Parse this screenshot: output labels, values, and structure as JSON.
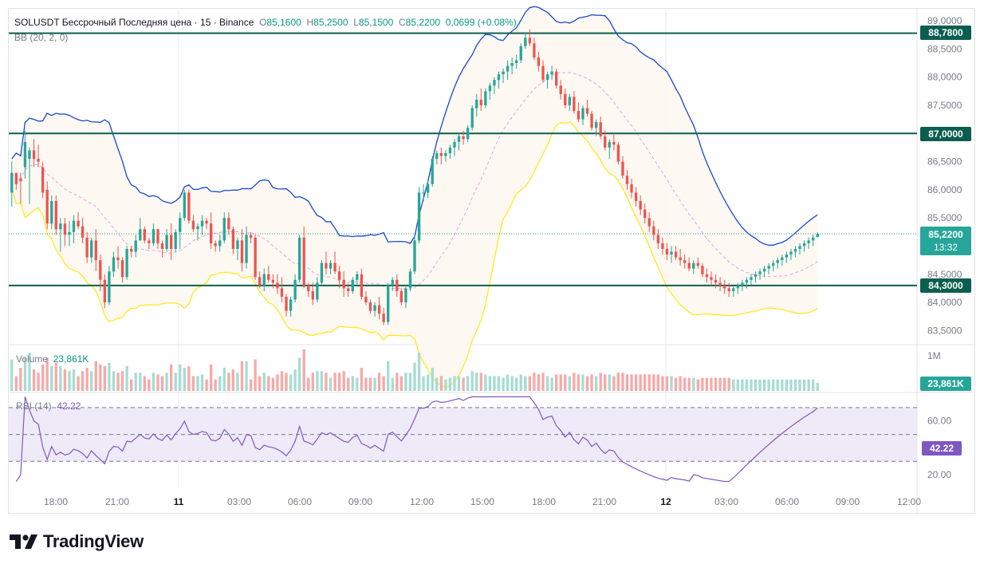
{
  "legend": {
    "symbol": "SOLUSDT Бессрочный Последняя цена · 15 · Binance",
    "open_label": "O",
    "open": "85,1600",
    "high_label": "H",
    "high": "85,2500",
    "low_label": "L",
    "low": "85,1500",
    "close_label": "C",
    "close": "85,2200",
    "change": "0,0699 (+0.08%)",
    "bb": "BB (20, 2, 0)",
    "volume_label": "Volume",
    "volume_value": "23,861K",
    "rsi_label": "RSI (14)",
    "rsi_value": "42.22"
  },
  "badges": {
    "level_high": "88,7800",
    "level_mid": "87,0000",
    "level_low": "84,3000",
    "last_price": "85,2200",
    "countdown": "13:32",
    "volume": "23,861K",
    "rsi": "42.22"
  },
  "volume_axis_label": "1M",
  "brand": "TradingView",
  "colors": {
    "up": "#26a69a",
    "down": "#ef5350",
    "bb_upper": "#1848cc",
    "bb_lower": "#ffe91f",
    "bb_mid": "#e1a3e8",
    "level": "#0b5e4f",
    "rsi": "#7e57c2"
  },
  "chart_data": [
    {
      "type": "candlestick",
      "title": "SOLUSDT Бессрочный Последняя цена · 15 · Binance",
      "y_ticks": [
        "89,0000",
        "88,5000",
        "88,0000",
        "87,5000",
        "87,0000",
        "86,5000",
        "86,0000",
        "85,5000",
        "85,0000",
        "84,5000",
        "84,0000",
        "83,5000"
      ],
      "y_tick_values": [
        89.0,
        88.5,
        88.0,
        87.5,
        87.0,
        86.5,
        86.0,
        85.5,
        85.0,
        84.5,
        84.0,
        83.5
      ],
      "ylim": [
        83.25,
        89.2
      ],
      "x_ticks": [
        "18:00",
        "21:00",
        "11",
        "03:00",
        "06:00",
        "09:00",
        "12:00",
        "15:00",
        "18:00",
        "21:00",
        "12",
        "03:00",
        "06:00",
        "09:00",
        "12:00"
      ],
      "horizontal_levels": [
        88.78,
        87.0,
        84.3
      ],
      "last_price": 85.22,
      "candles": [
        [
          85.95,
          86.5,
          85.7,
          86.3
        ],
        [
          86.3,
          86.3,
          86.0,
          86.1
        ],
        [
          86.2,
          86.3,
          85.75,
          86.15
        ],
        [
          86.4,
          87.05,
          86.2,
          86.85
        ],
        [
          86.55,
          86.75,
          85.75,
          86.7
        ],
        [
          86.7,
          86.9,
          86.4,
          86.55
        ],
        [
          86.55,
          86.8,
          86.4,
          86.5
        ],
        [
          86.4,
          86.5,
          85.85,
          85.95
        ],
        [
          86.0,
          86.15,
          85.3,
          85.4
        ],
        [
          85.4,
          85.9,
          85.3,
          85.8
        ],
        [
          85.8,
          85.9,
          85.2,
          85.3
        ],
        [
          85.3,
          85.5,
          84.9,
          85.4
        ],
        [
          85.4,
          85.5,
          85.0,
          85.2
        ],
        [
          85.2,
          85.45,
          85.0,
          85.25
        ],
        [
          85.25,
          85.55,
          85.05,
          85.45
        ],
        [
          85.45,
          85.6,
          85.3,
          85.35
        ],
        [
          85.35,
          85.5,
          85.05,
          85.15
        ],
        [
          85.15,
          85.25,
          84.7,
          84.8
        ],
        [
          84.8,
          85.15,
          84.7,
          85.1
        ],
        [
          85.1,
          85.3,
          84.55,
          84.75
        ],
        [
          84.75,
          84.85,
          84.2,
          84.4
        ],
        [
          84.4,
          84.5,
          83.9,
          84.0
        ],
        [
          84.0,
          84.65,
          83.95,
          84.55
        ],
        [
          84.55,
          84.9,
          84.45,
          84.8
        ],
        [
          84.8,
          85.0,
          84.6,
          84.75
        ],
        [
          84.75,
          84.8,
          84.35,
          84.45
        ],
        [
          84.45,
          85.0,
          84.4,
          84.95
        ],
        [
          84.95,
          85.0,
          84.8,
          84.9
        ],
        [
          84.9,
          85.2,
          84.8,
          85.1
        ],
        [
          85.1,
          85.5,
          85.1,
          85.3
        ],
        [
          85.3,
          85.35,
          85.05,
          85.1
        ],
        [
          85.1,
          85.15,
          84.95,
          85.05
        ],
        [
          85.05,
          85.4,
          85.0,
          85.3
        ],
        [
          85.3,
          85.3,
          84.95,
          85.05
        ],
        [
          85.05,
          85.1,
          84.8,
          84.95
        ],
        [
          84.95,
          85.3,
          84.9,
          85.2
        ],
        [
          85.2,
          85.4,
          84.75,
          84.95
        ],
        [
          84.95,
          85.3,
          84.9,
          85.25
        ],
        [
          85.25,
          85.6,
          84.95,
          85.5
        ],
        [
          85.5,
          86.0,
          85.45,
          85.95
        ],
        [
          85.95,
          86.0,
          85.4,
          85.45
        ],
        [
          85.45,
          85.55,
          85.25,
          85.3
        ],
        [
          85.3,
          85.4,
          85.1,
          85.35
        ],
        [
          85.35,
          85.55,
          85.2,
          85.45
        ],
        [
          85.45,
          85.5,
          85.3,
          85.4
        ],
        [
          85.4,
          85.6,
          84.95,
          85.05
        ],
        [
          85.05,
          85.1,
          84.9,
          85.0
        ],
        [
          85.0,
          85.2,
          84.9,
          85.1
        ],
        [
          85.1,
          85.6,
          85.05,
          85.5
        ],
        [
          85.5,
          85.6,
          85.2,
          85.3
        ],
        [
          85.3,
          85.35,
          84.85,
          84.95
        ],
        [
          84.95,
          85.15,
          84.75,
          85.1
        ],
        [
          85.1,
          85.3,
          84.55,
          84.7
        ],
        [
          84.7,
          85.35,
          84.6,
          85.2
        ],
        [
          85.2,
          85.25,
          85.05,
          85.15
        ],
        [
          85.15,
          85.2,
          84.4,
          84.45
        ],
        [
          84.45,
          84.55,
          84.25,
          84.3
        ],
        [
          84.3,
          84.6,
          84.2,
          84.5
        ],
        [
          84.5,
          84.65,
          84.35,
          84.4
        ],
        [
          84.4,
          84.5,
          84.25,
          84.35
        ],
        [
          84.35,
          84.5,
          84.15,
          84.25
        ],
        [
          84.25,
          84.45,
          84.0,
          84.1
        ],
        [
          84.1,
          84.15,
          83.75,
          83.85
        ],
        [
          83.85,
          84.1,
          83.75,
          84.05
        ],
        [
          84.05,
          84.5,
          84.0,
          84.4
        ],
        [
          84.4,
          85.2,
          84.35,
          85.15
        ],
        [
          85.15,
          85.35,
          84.25,
          84.3
        ],
        [
          84.3,
          84.35,
          84.1,
          84.2
        ],
        [
          84.2,
          84.35,
          83.95,
          84.05
        ],
        [
          84.05,
          84.45,
          84.0,
          84.35
        ],
        [
          84.35,
          84.75,
          84.3,
          84.7
        ],
        [
          84.7,
          84.9,
          84.5,
          84.6
        ],
        [
          84.6,
          84.75,
          84.5,
          84.7
        ],
        [
          84.7,
          84.9,
          84.5,
          84.55
        ],
        [
          84.55,
          84.65,
          84.25,
          84.4
        ],
        [
          84.4,
          84.55,
          84.1,
          84.25
        ],
        [
          84.25,
          84.35,
          84.1,
          84.2
        ],
        [
          84.2,
          84.45,
          84.15,
          84.4
        ],
        [
          84.4,
          84.55,
          84.3,
          84.5
        ],
        [
          84.5,
          84.6,
          84.05,
          84.1
        ],
        [
          84.1,
          84.2,
          83.95,
          84.0
        ],
        [
          84.0,
          84.05,
          83.8,
          83.85
        ],
        [
          83.85,
          84.0,
          83.75,
          83.95
        ],
        [
          83.95,
          84.1,
          83.7,
          83.8
        ],
        [
          83.8,
          83.9,
          83.6,
          83.65
        ],
        [
          83.65,
          84.35,
          83.6,
          84.3
        ],
        [
          84.3,
          84.45,
          84.2,
          84.4
        ],
        [
          84.4,
          84.5,
          84.1,
          84.2
        ],
        [
          84.2,
          84.25,
          83.95,
          84.0
        ],
        [
          84.0,
          84.3,
          83.9,
          84.25
        ],
        [
          84.25,
          84.6,
          84.2,
          84.55
        ],
        [
          84.55,
          85.2,
          84.5,
          85.1
        ],
        [
          85.1,
          86.05,
          85.05,
          85.95
        ],
        [
          85.95,
          86.1,
          85.8,
          85.95
        ],
        [
          85.95,
          86.2,
          85.85,
          86.1
        ],
        [
          86.1,
          86.6,
          86.05,
          86.55
        ],
        [
          86.55,
          86.7,
          86.45,
          86.65
        ],
        [
          86.65,
          86.75,
          86.45,
          86.6
        ],
        [
          86.6,
          86.7,
          86.5,
          86.65
        ],
        [
          86.65,
          86.8,
          86.55,
          86.75
        ],
        [
          86.75,
          86.9,
          86.6,
          86.85
        ],
        [
          86.85,
          87.0,
          86.7,
          86.95
        ],
        [
          86.95,
          87.05,
          86.8,
          86.9
        ],
        [
          86.9,
          87.15,
          86.85,
          87.1
        ],
        [
          87.1,
          87.5,
          87.05,
          87.45
        ],
        [
          87.45,
          87.7,
          87.3,
          87.6
        ],
        [
          87.6,
          87.8,
          87.4,
          87.5
        ],
        [
          87.5,
          87.8,
          87.45,
          87.75
        ],
        [
          87.75,
          87.9,
          87.6,
          87.85
        ],
        [
          87.85,
          88.0,
          87.7,
          87.95
        ],
        [
          87.95,
          88.1,
          87.8,
          88.05
        ],
        [
          88.05,
          88.15,
          87.9,
          88.1
        ],
        [
          88.1,
          88.3,
          87.95,
          88.2
        ],
        [
          88.2,
          88.35,
          88.05,
          88.25
        ],
        [
          88.25,
          88.4,
          88.15,
          88.3
        ],
        [
          88.3,
          88.6,
          88.25,
          88.55
        ],
        [
          88.55,
          88.8,
          88.5,
          88.7
        ],
        [
          88.7,
          88.85,
          88.55,
          88.6
        ],
        [
          88.6,
          88.7,
          88.3,
          88.35
        ],
        [
          88.35,
          88.45,
          88.1,
          88.2
        ],
        [
          88.2,
          88.3,
          87.9,
          87.95
        ],
        [
          87.95,
          88.1,
          87.8,
          88.05
        ],
        [
          88.05,
          88.2,
          87.95,
          88.1
        ],
        [
          88.1,
          88.15,
          87.8,
          87.85
        ],
        [
          87.85,
          87.95,
          87.6,
          87.7
        ],
        [
          87.7,
          87.8,
          87.45,
          87.5
        ],
        [
          87.5,
          87.7,
          87.4,
          87.65
        ],
        [
          87.65,
          87.75,
          87.35,
          87.4
        ],
        [
          87.4,
          87.55,
          87.2,
          87.25
        ],
        [
          87.25,
          87.5,
          87.15,
          87.45
        ],
        [
          87.45,
          87.6,
          87.3,
          87.35
        ],
        [
          87.35,
          87.4,
          87.05,
          87.1
        ],
        [
          87.1,
          87.25,
          86.95,
          87.2
        ],
        [
          87.2,
          87.3,
          86.9,
          86.95
        ],
        [
          86.95,
          87.05,
          86.7,
          86.75
        ],
        [
          86.75,
          86.9,
          86.55,
          86.85
        ],
        [
          86.85,
          87.0,
          86.7,
          86.8
        ],
        [
          86.8,
          86.85,
          86.45,
          86.5
        ],
        [
          86.5,
          86.6,
          86.2,
          86.25
        ],
        [
          86.25,
          86.35,
          86.0,
          86.1
        ],
        [
          86.1,
          86.2,
          85.85,
          85.95
        ],
        [
          85.95,
          86.05,
          85.7,
          85.8
        ],
        [
          85.8,
          85.9,
          85.55,
          85.65
        ],
        [
          85.65,
          85.75,
          85.4,
          85.5
        ],
        [
          85.5,
          85.6,
          85.25,
          85.35
        ],
        [
          85.35,
          85.45,
          85.1,
          85.2
        ],
        [
          85.2,
          85.3,
          84.95,
          85.05
        ],
        [
          85.05,
          85.15,
          84.85,
          84.95
        ],
        [
          84.95,
          85.05,
          84.75,
          84.85
        ],
        [
          84.85,
          85.0,
          84.7,
          84.9
        ],
        [
          84.9,
          85.0,
          84.75,
          84.8
        ],
        [
          84.8,
          84.95,
          84.65,
          84.75
        ],
        [
          84.75,
          84.85,
          84.6,
          84.7
        ],
        [
          84.7,
          84.8,
          84.55,
          84.6
        ],
        [
          84.6,
          84.75,
          84.5,
          84.7
        ],
        [
          84.7,
          84.8,
          84.6,
          84.65
        ],
        [
          84.65,
          84.7,
          84.45,
          84.5
        ],
        [
          84.5,
          84.6,
          84.35,
          84.45
        ],
        [
          84.45,
          84.55,
          84.3,
          84.4
        ],
        [
          84.4,
          84.5,
          84.25,
          84.35
        ],
        [
          84.35,
          84.45,
          84.2,
          84.3
        ],
        [
          84.3,
          84.4,
          84.15,
          84.25
        ],
        [
          84.25,
          84.35,
          84.1,
          84.2
        ],
        [
          84.2,
          84.3,
          84.1,
          84.25
        ],
        [
          84.25,
          84.35,
          84.15,
          84.3
        ],
        [
          84.3,
          84.4,
          84.2,
          84.35
        ],
        [
          84.35,
          84.45,
          84.25,
          84.4
        ],
        [
          84.4,
          84.5,
          84.3,
          84.45
        ],
        [
          84.45,
          84.55,
          84.35,
          84.5
        ],
        [
          84.5,
          84.6,
          84.4,
          84.55
        ],
        [
          84.55,
          84.65,
          84.45,
          84.6
        ],
        [
          84.6,
          84.7,
          84.5,
          84.65
        ],
        [
          84.65,
          84.75,
          84.55,
          84.7
        ],
        [
          84.7,
          84.8,
          84.6,
          84.75
        ],
        [
          84.75,
          84.85,
          84.65,
          84.8
        ],
        [
          84.8,
          84.9,
          84.7,
          84.85
        ],
        [
          84.85,
          84.95,
          84.75,
          84.9
        ],
        [
          84.9,
          85.0,
          84.8,
          84.95
        ],
        [
          84.95,
          85.05,
          84.85,
          85.0
        ],
        [
          85.0,
          85.1,
          84.9,
          85.05
        ],
        [
          85.05,
          85.15,
          84.95,
          85.1
        ],
        [
          85.1,
          85.2,
          85.0,
          85.15
        ],
        [
          85.16,
          85.25,
          85.15,
          85.22
        ]
      ]
    },
    {
      "type": "bar",
      "title": "Volume",
      "y_ticks": [
        "1M"
      ]
    },
    {
      "type": "line",
      "title": "RSI (14)",
      "y_ticks": [
        "60.00",
        "20.00"
      ],
      "ylim": [
        10,
        80
      ],
      "bands": [
        70,
        50,
        30
      ],
      "last_value": 42.22
    }
  ]
}
